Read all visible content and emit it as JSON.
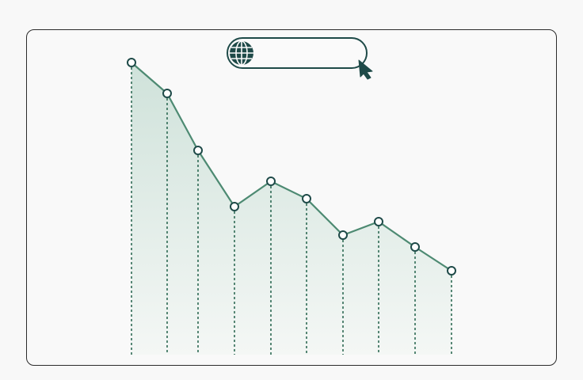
{
  "colors": {
    "line": "#4d8a72",
    "dash": "#2f6b55",
    "area_top": "#cfe2da",
    "ui": "#1e4a48",
    "frame": "#2b2b2b"
  },
  "address_bar": {
    "icon": "globe-icon",
    "value": ""
  },
  "cursor": {
    "icon": "pointer-cursor-icon"
  },
  "chart_data": {
    "type": "area",
    "x": [
      1,
      2,
      3,
      4,
      5,
      6,
      7,
      8,
      9,
      10
    ],
    "values": [
      369,
      330,
      258,
      187,
      219,
      197,
      151,
      168,
      136,
      106
    ],
    "ylim": [
      0,
      369
    ],
    "grid": false,
    "markers": "hollow-circle",
    "drop_lines": "dotted"
  }
}
